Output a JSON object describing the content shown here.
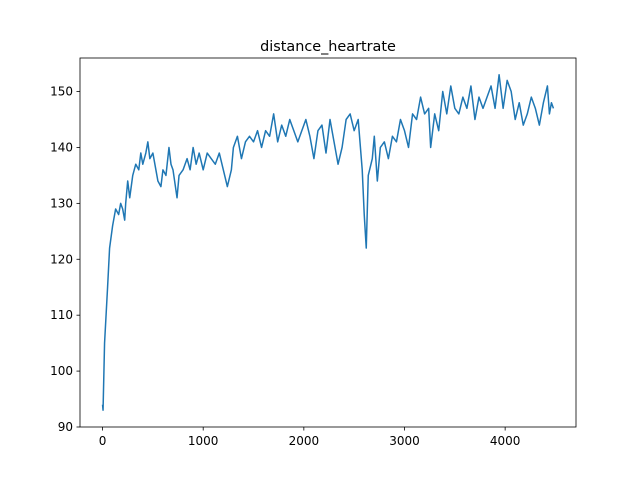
{
  "chart_data": {
    "type": "line",
    "title": "distance_heartrate",
    "x": [
      0,
      5,
      20,
      50,
      70,
      100,
      130,
      160,
      180,
      200,
      220,
      230,
      250,
      270,
      300,
      330,
      360,
      380,
      400,
      430,
      450,
      470,
      500,
      530,
      550,
      580,
      600,
      630,
      660,
      680,
      700,
      740,
      760,
      800,
      840,
      870,
      900,
      930,
      960,
      1000,
      1040,
      1080,
      1120,
      1160,
      1200,
      1240,
      1280,
      1300,
      1340,
      1380,
      1420,
      1460,
      1500,
      1540,
      1580,
      1620,
      1660,
      1700,
      1740,
      1780,
      1820,
      1860,
      1900,
      1940,
      1980,
      2020,
      2060,
      2100,
      2140,
      2180,
      2220,
      2260,
      2300,
      2340,
      2380,
      2420,
      2460,
      2500,
      2540,
      2580,
      2600,
      2620,
      2640,
      2680,
      2700,
      2730,
      2760,
      2800,
      2840,
      2880,
      2920,
      2960,
      3000,
      3040,
      3080,
      3120,
      3160,
      3200,
      3240,
      3260,
      3300,
      3340,
      3380,
      3420,
      3460,
      3500,
      3540,
      3580,
      3620,
      3660,
      3700,
      3740,
      3780,
      3820,
      3860,
      3900,
      3940,
      3980,
      4020,
      4060,
      4100,
      4140,
      4180,
      4220,
      4260,
      4300,
      4340,
      4380,
      4420,
      4440,
      4460,
      4480
    ],
    "series": [
      {
        "color": "#1f77b4",
        "values": [
          94,
          93,
          105,
          115,
          122,
          126,
          129,
          128,
          130,
          129,
          127,
          130,
          134,
          131,
          135,
          137,
          136,
          139,
          137,
          139,
          141,
          138,
          139,
          136,
          134,
          133,
          136,
          135,
          140,
          137,
          136,
          131,
          135,
          136,
          138,
          136,
          140,
          137,
          139,
          136,
          139,
          138,
          137,
          139,
          136,
          133,
          136,
          140,
          142,
          138,
          141,
          142,
          141,
          143,
          140,
          143,
          142,
          146,
          141,
          144,
          142,
          145,
          143,
          141,
          143,
          145,
          142,
          138,
          143,
          144,
          139,
          145,
          141,
          137,
          140,
          145,
          146,
          143,
          145,
          136,
          128,
          122,
          135,
          138,
          142,
          134,
          140,
          141,
          138,
          142,
          141,
          145,
          143,
          140,
          146,
          145,
          149,
          146,
          147,
          140,
          146,
          143,
          150,
          146,
          151,
          147,
          146,
          149,
          147,
          151,
          145,
          149,
          147,
          149,
          151,
          147,
          153,
          147,
          152,
          150,
          145,
          148,
          144,
          146,
          149,
          147,
          144,
          148,
          151,
          146,
          148,
          147
        ]
      }
    ],
    "xlim": [
      -224,
      4704
    ],
    "ylim": [
      90,
      156
    ],
    "xticks": [
      0,
      1000,
      2000,
      3000,
      4000
    ],
    "yticks": [
      90,
      100,
      110,
      120,
      130,
      140,
      150
    ]
  }
}
